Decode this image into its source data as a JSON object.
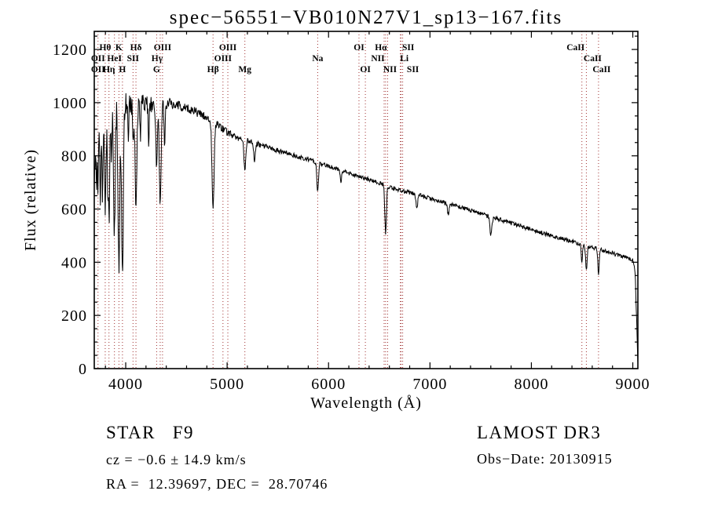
{
  "figure": {
    "title": "spec−56551−VB010N27V1_sp13−167.fits",
    "footer": {
      "class_label": "STAR   F9",
      "survey": "LAMOST DR3",
      "cz": "cz = −0.6 ± 14.9 km/s",
      "obs_date": "Obs−Date: 20130915",
      "ra_dec": "RA =  12.39697, DEC =  28.70746"
    },
    "colors": {
      "background": "#ffffff",
      "spectrum": "#000000",
      "markers": "#a03030",
      "axis": "#000000"
    }
  },
  "chart_data": {
    "type": "line",
    "title": "spec−56551−VB010N27V1_sp13−167.fits",
    "xlabel": "Wavelength (Å)",
    "ylabel": "Flux (relative)",
    "xlim": [
      3690,
      9050
    ],
    "ylim": [
      0,
      1268
    ],
    "x_ticks": [
      4000,
      5000,
      6000,
      7000,
      8000,
      9000
    ],
    "y_ticks": [
      0,
      200,
      400,
      600,
      800,
      1000,
      1200
    ],
    "x_minor_step": 200,
    "y_minor_step": 50,
    "grid": false,
    "noise_seed": 56551,
    "noise": {
      "base": 8,
      "blue_extra": 48,
      "blue_center": 3800,
      "blue_sigma": 280,
      "mid_extra": 9,
      "mid_center": 4500,
      "mid_sigma": 500
    },
    "continuum": [
      [
        3690,
        700
      ],
      [
        3700,
        830
      ],
      [
        3715,
        930
      ],
      [
        3740,
        958
      ],
      [
        3780,
        972
      ],
      [
        3830,
        984
      ],
      [
        3880,
        994
      ],
      [
        3940,
        1004
      ],
      [
        4000,
        1008
      ],
      [
        4070,
        1000
      ],
      [
        4130,
        1004
      ],
      [
        4200,
        995
      ],
      [
        4280,
        990
      ],
      [
        4360,
        992
      ],
      [
        4440,
        996
      ],
      [
        4520,
        990
      ],
      [
        4600,
        980
      ],
      [
        4680,
        968
      ],
      [
        4760,
        952
      ],
      [
        4840,
        938
      ],
      [
        4920,
        912
      ],
      [
        5000,
        888
      ],
      [
        5080,
        872
      ],
      [
        5160,
        862
      ],
      [
        5240,
        852
      ],
      [
        5320,
        842
      ],
      [
        5400,
        832
      ],
      [
        5480,
        822
      ],
      [
        5560,
        813
      ],
      [
        5640,
        804
      ],
      [
        5720,
        795
      ],
      [
        5800,
        786
      ],
      [
        5880,
        776
      ],
      [
        5960,
        766
      ],
      [
        6040,
        756
      ],
      [
        6120,
        746
      ],
      [
        6200,
        736
      ],
      [
        6280,
        726
      ],
      [
        6360,
        716
      ],
      [
        6440,
        705
      ],
      [
        6520,
        695
      ],
      [
        6600,
        684
      ],
      [
        6680,
        674
      ],
      [
        6760,
        666
      ],
      [
        6840,
        658
      ],
      [
        6920,
        650
      ],
      [
        7000,
        640
      ],
      [
        7100,
        629
      ],
      [
        7200,
        618
      ],
      [
        7300,
        607
      ],
      [
        7400,
        595
      ],
      [
        7500,
        583
      ],
      [
        7600,
        571
      ],
      [
        7700,
        559
      ],
      [
        7800,
        547
      ],
      [
        7900,
        535
      ],
      [
        8000,
        523
      ],
      [
        8100,
        511
      ],
      [
        8200,
        500
      ],
      [
        8300,
        489
      ],
      [
        8400,
        478
      ],
      [
        8500,
        467
      ],
      [
        8600,
        456
      ],
      [
        8700,
        445
      ],
      [
        8800,
        434
      ],
      [
        8900,
        422
      ],
      [
        8960,
        414
      ],
      [
        9000,
        406
      ],
      [
        9012,
        396
      ],
      [
        9025,
        340
      ],
      [
        9038,
        180
      ],
      [
        9050,
        20
      ]
    ],
    "absorption_lines": [
      [
        3712,
        260,
        5
      ],
      [
        3727,
        230,
        5
      ],
      [
        3750,
        300,
        6
      ],
      [
        3771,
        300,
        6
      ],
      [
        3798,
        380,
        7
      ],
      [
        3820,
        220,
        5
      ],
      [
        3835,
        430,
        7
      ],
      [
        3860,
        200,
        5
      ],
      [
        3889,
        480,
        8
      ],
      [
        3933,
        640,
        9
      ],
      [
        3968,
        650,
        9
      ],
      [
        4026,
        140,
        5
      ],
      [
        4072,
        170,
        5
      ],
      [
        4101,
        400,
        9
      ],
      [
        4144,
        140,
        5
      ],
      [
        4226,
        170,
        5
      ],
      [
        4305,
        240,
        8
      ],
      [
        4340,
        360,
        9
      ],
      [
        4383,
        160,
        5
      ],
      [
        4861,
        330,
        10
      ],
      [
        5175,
        120,
        9
      ],
      [
        5270,
        80,
        7
      ],
      [
        5893,
        110,
        8
      ],
      [
        6122,
        50,
        6
      ],
      [
        6563,
        180,
        8
      ],
      [
        6870,
        55,
        8
      ],
      [
        7180,
        40,
        8
      ],
      [
        7600,
        65,
        10
      ],
      [
        8498,
        70,
        6
      ],
      [
        8542,
        95,
        7
      ],
      [
        8662,
        90,
        7
      ]
    ],
    "spectral_markers": [
      {
        "label": "Hθ",
        "wavelength": 3798,
        "row": 1
      },
      {
        "label": "K",
        "wavelength": 3933,
        "row": 1
      },
      {
        "label": "Hδ",
        "wavelength": 4101,
        "row": 1
      },
      {
        "label": "OIII",
        "wavelength": 4363,
        "row": 1
      },
      {
        "label": "OIII",
        "wavelength": 5007,
        "row": 1
      },
      {
        "label": "OI",
        "wavelength": 6300,
        "row": 1
      },
      {
        "label": "Hα",
        "wavelength": 6563,
        "row": 1,
        "dx": -6
      },
      {
        "label": "SII",
        "wavelength": 6716,
        "row": 1,
        "dx": 9
      },
      {
        "label": "CaII",
        "wavelength": 8498,
        "row": 1,
        "dx": -8
      },
      {
        "label": "OII",
        "wavelength": 3727,
        "row": 2
      },
      {
        "label": "HeI",
        "wavelength": 3889,
        "row": 2
      },
      {
        "label": "SII",
        "wavelength": 4072,
        "row": 2
      },
      {
        "label": "Hγ",
        "wavelength": 4340,
        "row": 2,
        "dx": -4
      },
      {
        "label": "OIII",
        "wavelength": 4959,
        "row": 2
      },
      {
        "label": "Na",
        "wavelength": 5893,
        "row": 2
      },
      {
        "label": "NII",
        "wavelength": 6548,
        "row": 2,
        "dx": -8
      },
      {
        "label": "Li",
        "wavelength": 6708,
        "row": 2,
        "dx": 5
      },
      {
        "label": "CaII",
        "wavelength": 8542,
        "row": 2,
        "dx": 8
      },
      {
        "label": "OII",
        "wavelength": 3727,
        "row": 3
      },
      {
        "label": "Hη",
        "wavelength": 3835,
        "row": 3
      },
      {
        "label": "H",
        "wavelength": 3968,
        "row": 3
      },
      {
        "label": "G",
        "wavelength": 4305,
        "row": 3
      },
      {
        "label": "Hβ",
        "wavelength": 4861,
        "row": 3
      },
      {
        "label": "Mg",
        "wavelength": 5175,
        "row": 3
      },
      {
        "label": "OI",
        "wavelength": 6363,
        "row": 3
      },
      {
        "label": "NII",
        "wavelength": 6583,
        "row": 3,
        "dx": 3
      },
      {
        "label": "SII",
        "wavelength": 6731,
        "row": 3,
        "dx": 13
      },
      {
        "label": "CaII",
        "wavelength": 8662,
        "row": 3,
        "dx": 4
      }
    ]
  }
}
